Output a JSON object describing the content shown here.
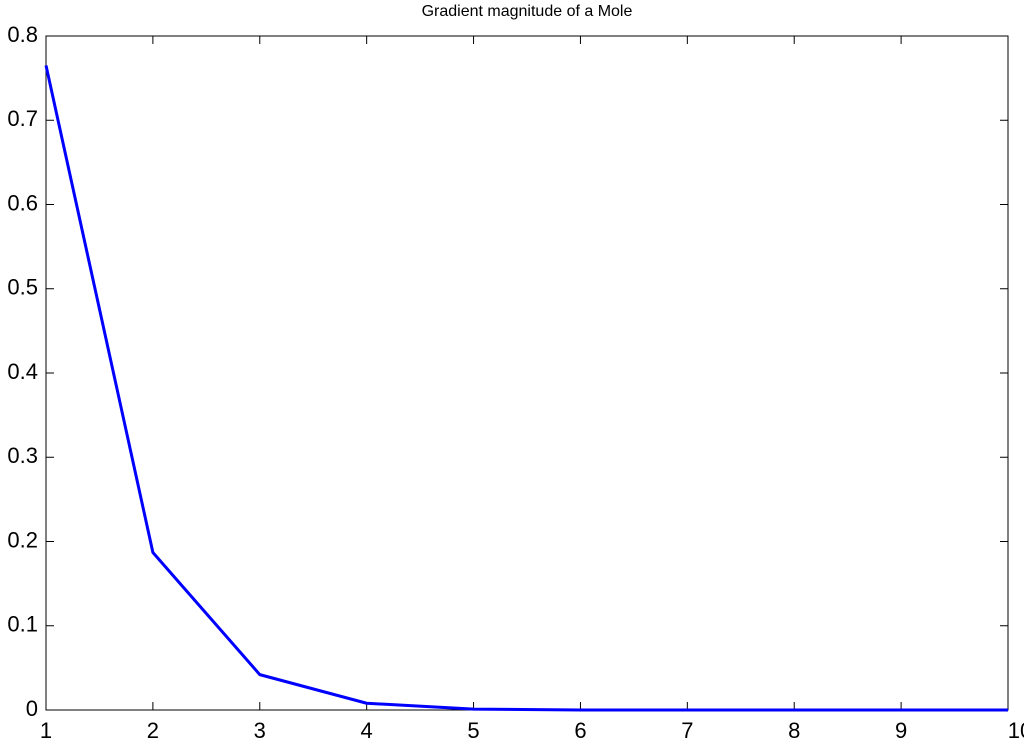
{
  "chart_data": {
    "type": "line",
    "title": "Gradient magnitude of a Mole",
    "x": [
      1,
      2,
      3,
      4,
      5,
      6,
      7,
      8,
      9,
      10
    ],
    "series": [
      {
        "color": "#0000ff",
        "values": [
          0.765,
          0.187,
          0.042,
          0.008,
          0.001,
          0,
          0,
          0,
          0,
          0
        ]
      }
    ],
    "xlim": [
      1,
      10
    ],
    "xticks": [
      1,
      2,
      3,
      4,
      5,
      6,
      7,
      8,
      9,
      10
    ],
    "ylim": [
      0,
      0.8
    ],
    "yticks": [
      0,
      0.1,
      0.2,
      0.3,
      0.4,
      0.5,
      0.6,
      0.7,
      0.8
    ],
    "grid": false
  }
}
